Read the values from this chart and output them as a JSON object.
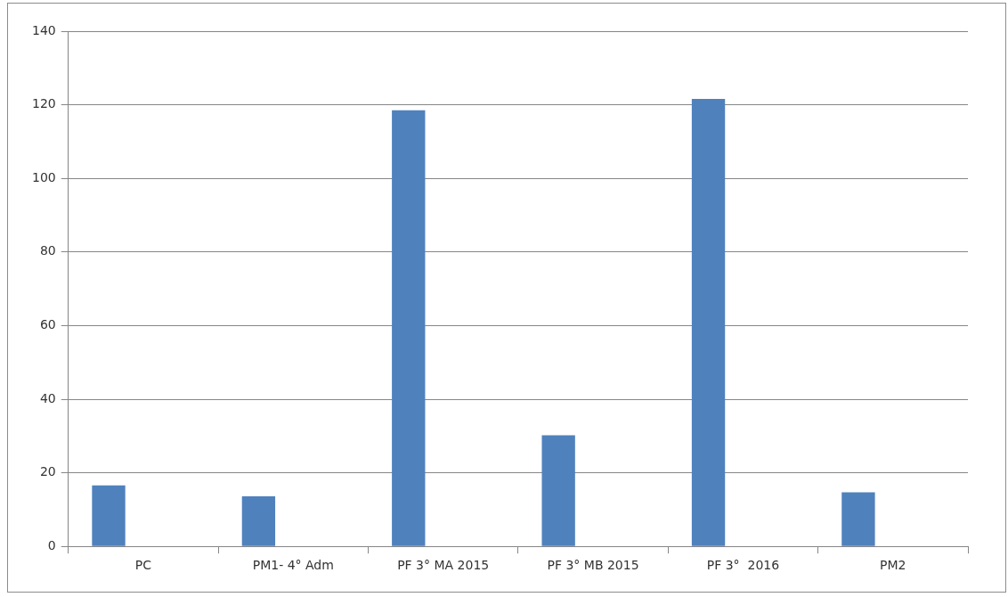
{
  "chart_data": {
    "type": "bar",
    "categories": [
      "PC",
      "PM1- 4° Adm",
      "PF 3° MA 2015",
      "PF 3° MB 2015",
      "PF 3°  2016",
      "PM2"
    ],
    "values": [
      16.6,
      13.6,
      118.5,
      30.2,
      121.6,
      14.7
    ],
    "color": "#4f81bd",
    "ylim": [
      0,
      140
    ],
    "yticks": [
      0,
      20,
      40,
      60,
      80,
      100,
      120,
      140
    ],
    "grid": "y"
  }
}
